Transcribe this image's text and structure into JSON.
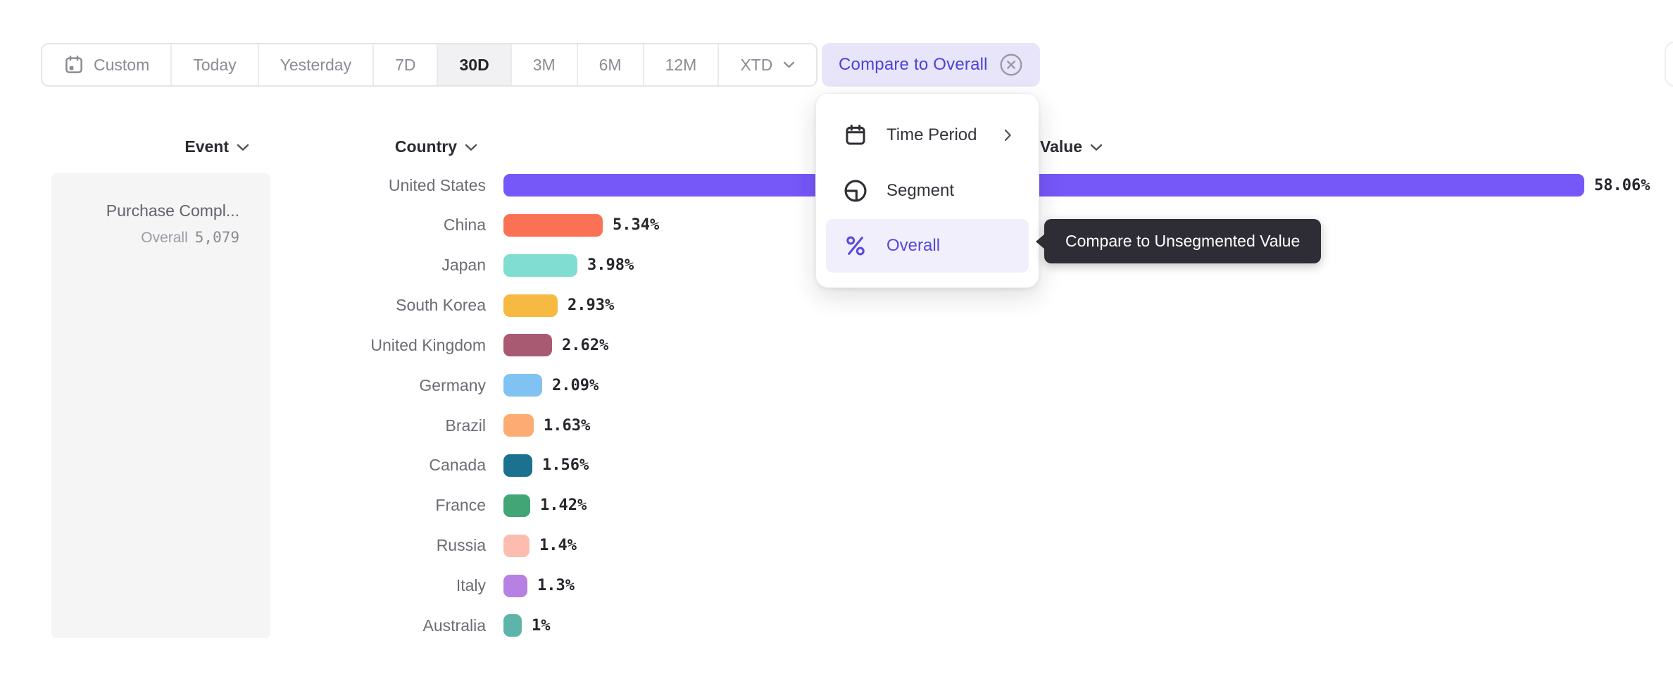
{
  "toolbar": {
    "date_ranges": [
      {
        "label": "Custom",
        "icon": "calendar-icon"
      },
      {
        "label": "Today"
      },
      {
        "label": "Yesterday"
      },
      {
        "label": "7D"
      },
      {
        "label": "30D",
        "selected": true
      },
      {
        "label": "3M"
      },
      {
        "label": "6M"
      },
      {
        "label": "12M"
      },
      {
        "label": "XTD",
        "chevron": true
      }
    ],
    "compare_chip": {
      "label": "Compare to Overall",
      "icon": "circle-x-icon"
    }
  },
  "columns": [
    {
      "label": "Event"
    },
    {
      "label": "Country"
    },
    {
      "label": "Value"
    }
  ],
  "event_cell": {
    "title": "Purchase Compl...",
    "overall_label": "Overall",
    "overall_value": "5,079"
  },
  "menu": {
    "items": [
      {
        "label": "Time Period",
        "icon": "calendar-icon",
        "trailing": "chevron-right-icon"
      },
      {
        "label": "Segment",
        "icon": "segment-icon"
      },
      {
        "label": "Overall",
        "icon": "percent-icon",
        "selected": true
      }
    ]
  },
  "tooltip": {
    "text": "Compare to Unsegmented Value"
  },
  "chart_data": {
    "type": "bar",
    "orientation": "horizontal",
    "categories": [
      "United States",
      "China",
      "Japan",
      "South Korea",
      "United Kingdom",
      "Germany",
      "Brazil",
      "Canada",
      "France",
      "Russia",
      "Italy",
      "Australia"
    ],
    "values": [
      58.06,
      5.34,
      3.98,
      2.93,
      2.62,
      2.09,
      1.63,
      1.56,
      1.42,
      1.4,
      1.3,
      1.0
    ],
    "value_labels": [
      "58.06%",
      "5.34%",
      "3.98%",
      "2.93%",
      "2.62%",
      "2.09%",
      "1.63%",
      "1.56%",
      "1.42%",
      "1.4%",
      "1.3%",
      "1%"
    ],
    "bar_colors": [
      "#7657f8",
      "#fb7156",
      "#80ddd2",
      "#f6ba42",
      "#a85a72",
      "#80c3f2",
      "#fcac72",
      "#1a7190",
      "#42a576",
      "#fcbdb0",
      "#b781e3",
      "#5db5a9"
    ],
    "xlabel": "Value",
    "ylabel": "Country",
    "xlim": [
      0,
      60
    ],
    "grid": false,
    "legend": false
  },
  "colors": {
    "accent_purple": "#7657f8",
    "chip_bg": "#e8e5fa",
    "chip_text": "#4d41d9",
    "menu_selected_bg": "#f1effc",
    "menu_selected_text": "#5447dd",
    "tooltip_bg": "#2e2d35",
    "label_gray": "#6c6c75",
    "value_dark": "#26262d"
  }
}
